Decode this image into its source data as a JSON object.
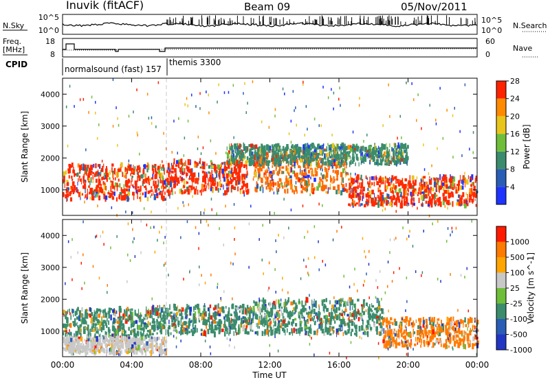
{
  "header": {
    "station": "Inuvik (fitACF)",
    "beam": "Beam 09",
    "date": "05/Nov/2011"
  },
  "panels": {
    "nsky": {
      "left_label": "N.Sky",
      "right_label": "N.Search",
      "left_ticks": [
        "10^5",
        "10^0"
      ],
      "right_ticks": [
        "10^5",
        "10^0"
      ]
    },
    "freq": {
      "left_label_1": "Freq.",
      "left_label_2": "[MHz]",
      "right_label": "Nave",
      "left_ticks": [
        "18",
        "8"
      ],
      "right_ticks": [
        "60",
        "0"
      ]
    },
    "cpid": {
      "label": "CPID",
      "modes": [
        "normalsound (fast) 157",
        "themis 3300"
      ]
    }
  },
  "chart_data": [
    {
      "type": "heatmap",
      "name": "power",
      "ylabel": "Slant Range [km]",
      "xlabel": "",
      "y_ticks": [
        "1000",
        "2000",
        "3000",
        "4000"
      ],
      "ylim": [
        200,
        4500
      ],
      "x_ticks": [
        "00:00",
        "04:00",
        "08:00",
        "12:00",
        "16:00",
        "20:00",
        "00:00"
      ],
      "colorbar": {
        "label": "Power [dB]",
        "ticks": [
          "4",
          "8",
          "12",
          "16",
          "20",
          "24",
          "28"
        ],
        "colors": [
          "#1e33ff",
          "#2a5db5",
          "#3a8c6c",
          "#6fbe3a",
          "#e9c51c",
          "#ff8a00",
          "#ff2200"
        ]
      },
      "bands": [
        {
          "t0": 0.0,
          "t1": 6.2,
          "r0": 700,
          "r1": 1800,
          "dominant": "#ff2a00"
        },
        {
          "t0": 6.2,
          "t1": 10.7,
          "r0": 900,
          "r1": 1900,
          "dominant": "#ff2a00"
        },
        {
          "t0": 11.0,
          "t1": 16.5,
          "r0": 900,
          "r1": 2100,
          "dominant": "#ff6a00"
        },
        {
          "t0": 16.5,
          "t1": 24.0,
          "r0": 500,
          "r1": 1400,
          "dominant": "#ff2a00"
        },
        {
          "t0": 9.5,
          "t1": 20.0,
          "r0": 1800,
          "r1": 2400,
          "dominant": "#3a8c6c"
        }
      ]
    },
    {
      "type": "heatmap",
      "name": "velocity",
      "ylabel": "Slant Range [km]",
      "xlabel": "Time UT",
      "y_ticks": [
        "1000",
        "2000",
        "3000",
        "4000"
      ],
      "ylim": [
        200,
        4500
      ],
      "x_ticks": [
        "00:00",
        "04:00",
        "08:00",
        "12:00",
        "16:00",
        "20:00",
        "00:00"
      ],
      "colorbar": {
        "label": "Velocity [m s^-1]",
        "ticks": [
          "1000",
          "500",
          "100",
          "25",
          "-25",
          "-100",
          "-500",
          "-1000"
        ],
        "colors": [
          "#2236c4",
          "#2a5db5",
          "#3a8c6c",
          "#6fbe3a",
          "#c8c8c8",
          "#ffa500",
          "#ff7a00",
          "#ff1a00"
        ]
      },
      "bands": [
        {
          "t0": 0.0,
          "t1": 5.0,
          "r0": 800,
          "r1": 1700,
          "dominant": "#3a8c6c"
        },
        {
          "t0": 5.0,
          "t1": 11.0,
          "r0": 900,
          "r1": 1800,
          "dominant": "#3a8c6c"
        },
        {
          "t0": 11.0,
          "t1": 18.5,
          "r0": 900,
          "r1": 2000,
          "dominant": "#3a8c6c"
        },
        {
          "t0": 18.5,
          "t1": 24.0,
          "r0": 500,
          "r1": 1400,
          "dominant": "#ff7a00"
        },
        {
          "t0": 0.0,
          "t1": 6.0,
          "r0": 300,
          "r1": 800,
          "dominant": "#c8c8c8"
        }
      ]
    }
  ]
}
